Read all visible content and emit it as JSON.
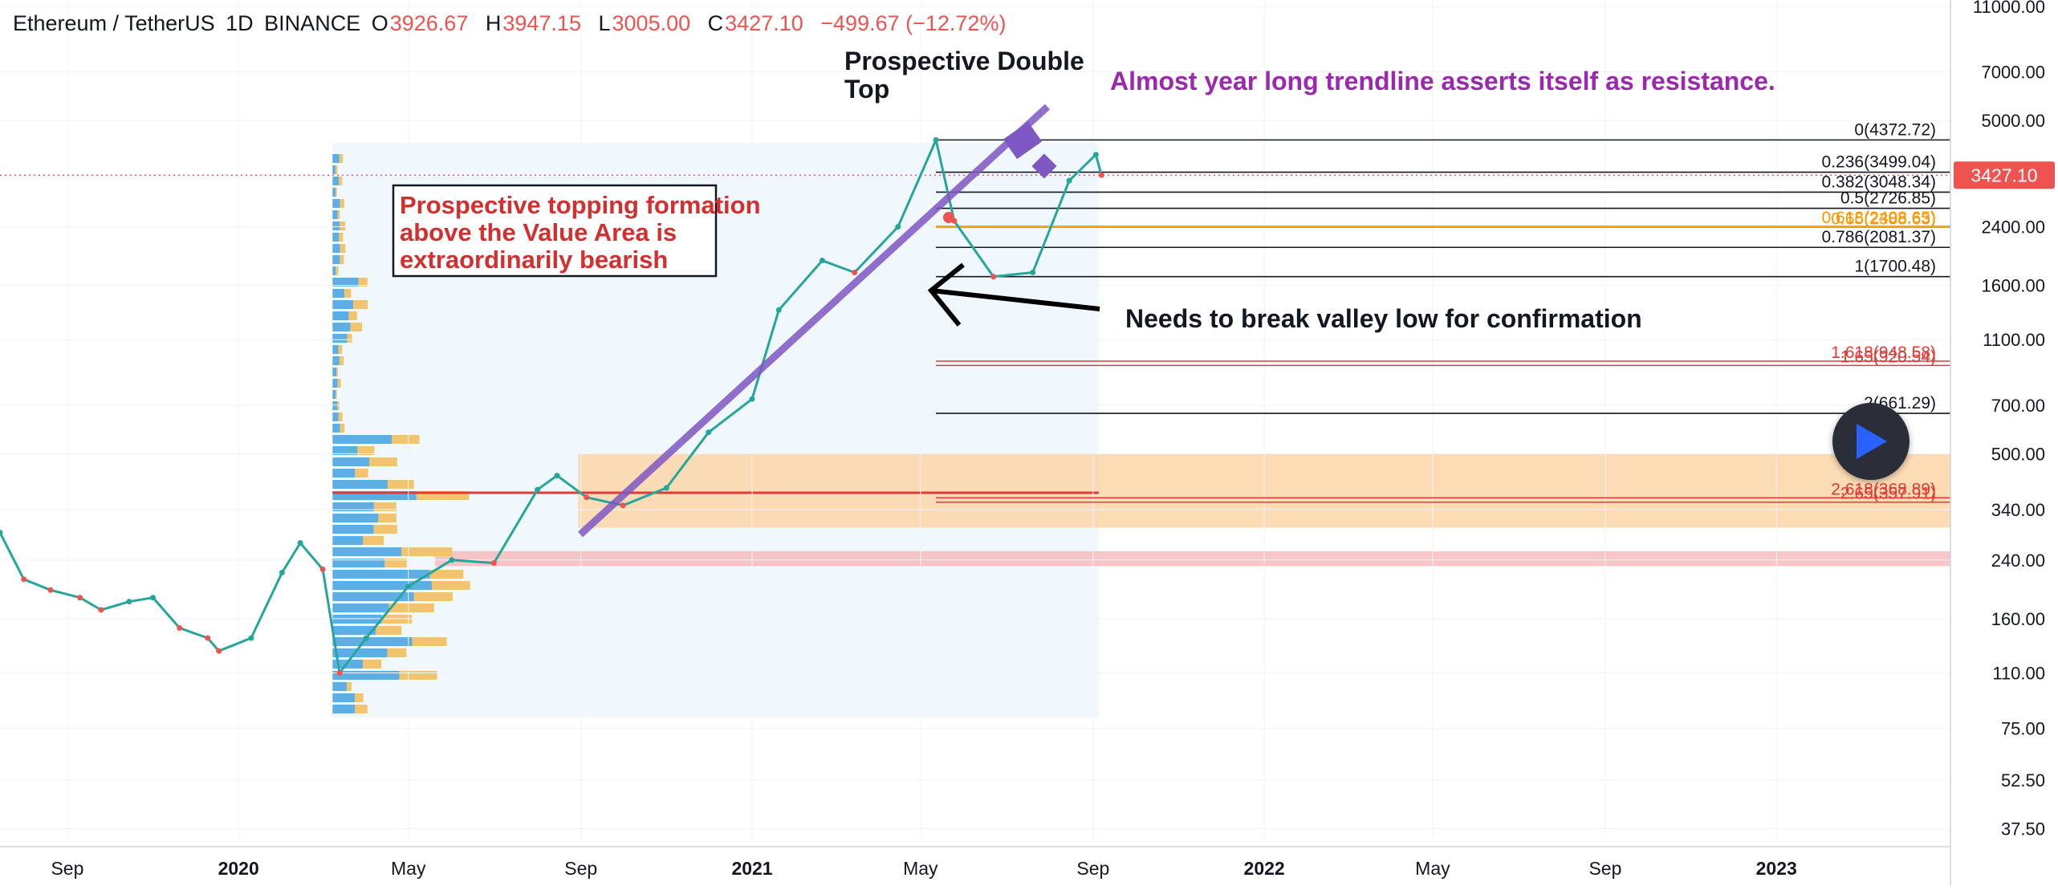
{
  "header": {
    "symbol": "Ethereum / TetherUS",
    "interval": "1D",
    "exchange": "BINANCE",
    "open_key": "O",
    "open": "3926.67",
    "high_key": "H",
    "high": "3947.15",
    "low_key": "L",
    "low": "3005.00",
    "close_key": "C",
    "close": "3427.10",
    "change": "−499.67 (−12.72%)"
  },
  "last_price_label": "3427.10",
  "annotations": {
    "double_top": [
      "Prospective Double",
      "Top"
    ],
    "trendline": "Almost year long trendline asserts itself as resistance.",
    "topping": [
      "Prospective topping formation",
      "above the Value Area is",
      "extraordinarily bearish"
    ],
    "valley": "Needs to break valley low for confirmation"
  },
  "chart_data": {
    "type": "line",
    "title": "",
    "xlabel": "",
    "ylabel": "",
    "y_scale": "log",
    "ylim": [
      35,
      11000
    ],
    "y_ticks": [
      "11000.00",
      "7000.00",
      "5000.00",
      "3427.10",
      "2400.00",
      "1600.00",
      "1100.00",
      "700.00",
      "500.00",
      "340.00",
      "240.00",
      "160.00",
      "110.00",
      "75.00",
      "52.50",
      "37.50"
    ],
    "x_ticks": [
      "Sep",
      "2020",
      "May",
      "Sep",
      "2021",
      "May",
      "Sep",
      "2022",
      "May",
      "Sep",
      "2023"
    ],
    "series": [
      {
        "x": [
          "2019-07-15",
          "2019-08-01",
          "2019-08-20",
          "2019-09-10",
          "2019-09-25",
          "2019-10-15",
          "2019-11-01",
          "2019-11-20",
          "2019-12-10",
          "2019-12-18",
          "2020-01-10",
          "2020-02-01",
          "2020-02-14",
          "2020-03-01",
          "2020-03-13",
          "2020-04-01",
          "2020-05-01",
          "2020-06-01",
          "2020-07-01",
          "2020-08-01",
          "2020-08-15",
          "2020-09-05",
          "2020-10-01",
          "2020-11-01",
          "2020-12-01",
          "2021-01-01",
          "2021-01-20",
          "2021-02-20",
          "2021-03-15",
          "2021-04-15",
          "2021-05-12",
          "2021-05-25",
          "2021-06-22",
          "2021-07-20",
          "2021-08-15",
          "2021-09-03",
          "2021-09-07"
        ],
        "values": [
          290,
          210,
          195,
          185,
          170,
          180,
          185,
          150,
          140,
          128,
          140,
          220,
          270,
          225,
          110,
          140,
          200,
          240,
          235,
          390,
          430,
          370,
          350,
          395,
          580,
          730,
          1350,
          1900,
          1750,
          2400,
          4372,
          2500,
          1700,
          1750,
          3300,
          3950,
          3427
        ]
      }
    ],
    "fib_levels": [
      {
        "label": "0(4372.72)",
        "value": 4372.72
      },
      {
        "label": "0.236(3499.04)",
        "value": 3499.04
      },
      {
        "label": "0.382(3048.34)",
        "value": 3048.34
      },
      {
        "label": "0.5(2726.85)",
        "value": 2726.85
      },
      {
        "label": "0.786(2081.37)",
        "value": 2081.37
      },
      {
        "label": "1(1700.48)",
        "value": 1700.48
      },
      {
        "label": "2(661.29)",
        "value": 661.29
      }
    ],
    "fib_levels_overlapping": [
      {
        "label": "0.618(2408.65)",
        "value": 2408.65
      },
      {
        "label": "0.65(2388.63)",
        "value": 2388.63
      },
      {
        "label": "1.618(948.58)",
        "value": 948.58
      },
      {
        "label": "1.65(920.54)",
        "value": 920.54
      },
      {
        "label": "2.618(368.89)",
        "value": 368.89
      },
      {
        "label": "2.65(357.91)",
        "value": 357.91
      }
    ],
    "zones": [
      {
        "name": "value area",
        "from": 300,
        "to": 500,
        "color": "#fbd6a8"
      },
      {
        "name": "support",
        "from": 230,
        "to": 255,
        "color": "#f6bcbc"
      }
    ],
    "point_of_control": 382,
    "colors": {
      "trendline": "#7e57c2",
      "annotation_red": "#d32f2f",
      "annotation_purple": "#9c27b0",
      "price_label": "#ef5350",
      "volume_up": "#5eaee6",
      "volume_down": "#f2c46d"
    }
  }
}
